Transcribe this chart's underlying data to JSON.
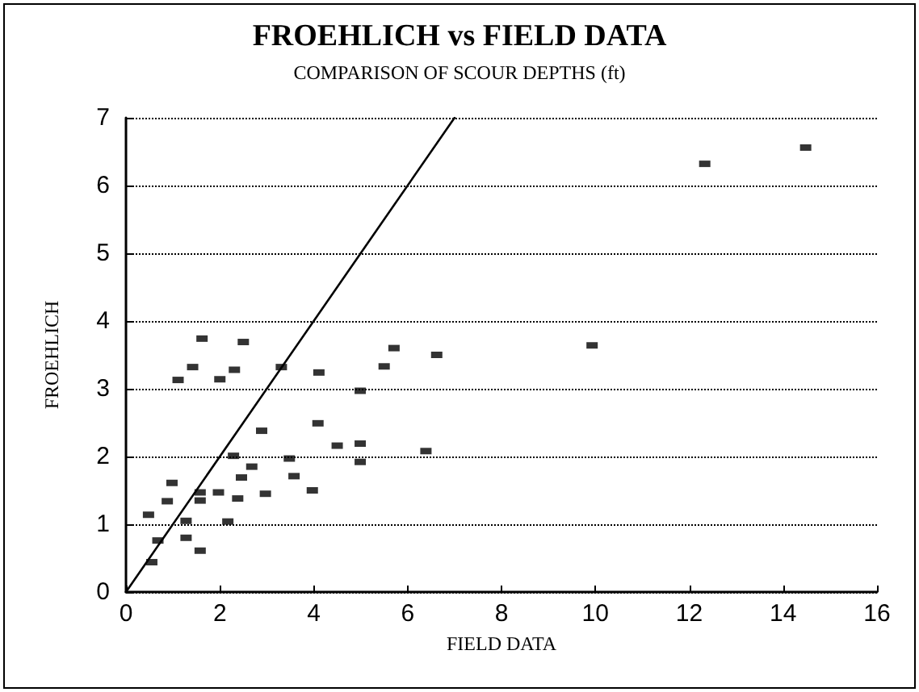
{
  "chart_data": {
    "type": "scatter",
    "title": "FROEHLICH vs FIELD DATA",
    "subtitle": "COMPARISON OF SCOUR DEPTHS (ft)",
    "xlabel": "FIELD DATA",
    "ylabel": "FROEHLICH",
    "x": [
      0.48,
      0.55,
      0.68,
      0.88,
      0.98,
      1.11,
      1.28,
      1.28,
      1.42,
      1.58,
      1.58,
      1.58,
      1.62,
      1.97,
      2.0,
      2.17,
      2.29,
      2.31,
      2.38,
      2.46,
      2.5,
      2.68,
      2.89,
      2.97,
      3.31,
      3.48,
      3.58,
      3.97,
      4.11,
      4.09,
      4.5,
      4.99,
      4.99,
      4.99,
      5.5,
      5.71,
      6.39,
      6.62,
      9.93,
      12.33,
      14.48
    ],
    "series": [
      {
        "color": "#000000",
        "marker": "square",
        "values": [
          1.14,
          0.44,
          0.76,
          1.34,
          1.61,
          3.13,
          1.05,
          0.8,
          3.32,
          1.47,
          1.35,
          0.61,
          3.74,
          1.47,
          3.14,
          1.04,
          2.01,
          3.28,
          1.38,
          1.69,
          3.69,
          1.85,
          2.38,
          1.45,
          3.32,
          1.97,
          1.71,
          1.5,
          3.24,
          2.49,
          2.16,
          2.97,
          2.19,
          1.92,
          3.33,
          3.6,
          2.08,
          3.5,
          3.64,
          6.32,
          6.56
        ]
      },
      {
        "type": "line",
        "color": "#000000",
        "marker": "none",
        "line_style": "solid",
        "x": [
          0,
          7
        ],
        "values": [
          0,
          7
        ]
      }
    ],
    "xlim": [
      0,
      16
    ],
    "xticks": [
      0,
      2,
      4,
      6,
      8,
      10,
      12,
      14,
      16
    ],
    "ylim": [
      0,
      7
    ],
    "yticks": [
      0,
      1,
      2,
      3,
      4,
      5,
      6,
      7
    ],
    "grid": "y"
  }
}
